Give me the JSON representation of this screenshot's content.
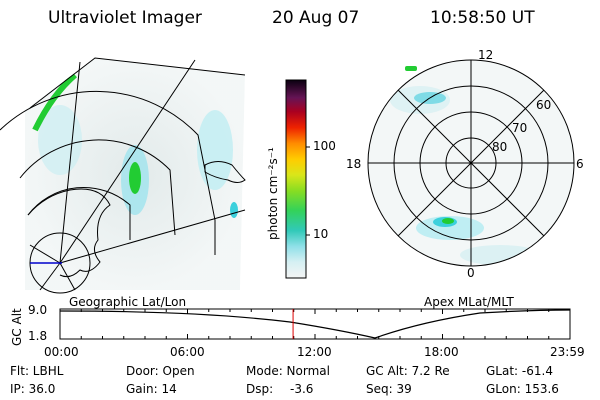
{
  "header": {
    "instrument": "Ultraviolet Imager",
    "date": "20 Aug 07",
    "time": "10:58:50 UT"
  },
  "colorbar": {
    "unit_label": "photon cm⁻²s⁻¹",
    "ticks": [
      "100",
      "10"
    ]
  },
  "polar_plot": {
    "mlt_labels": {
      "top": "12",
      "left": "18",
      "right": "6",
      "bottom": "0"
    },
    "lat_labels": [
      "60",
      "70",
      "80"
    ]
  },
  "altitude_strip": {
    "left_title": "Geographic Lat/Lon",
    "right_title": "Apex MLat/MLT",
    "axis_label": "GC Alt",
    "y_ticks": [
      "9.0",
      "1.8"
    ],
    "time_ticks": [
      "00:00",
      "06:00",
      "12:00",
      "18:00",
      "23:59"
    ],
    "current_time_fraction": 0.457
  },
  "status": {
    "flt": "Flt: LBHL",
    "ip": "IP: 36.0",
    "door": "Door: Open",
    "gain": "Gain: 14",
    "mode": "Mode: Normal",
    "dsp_label": "Dsp:",
    "dsp_value": "-3.6",
    "gc_alt": "GC Alt: 7.2 Re",
    "seq": "Seq: 39",
    "glat": "GLat: -61.4",
    "glon": "GLon: 153.6"
  },
  "colors": {
    "aurora_low": "#9fe3ee",
    "aurora_mid": "#3cd0dc",
    "aurora_high": "#22cc33",
    "time_marker": "#dd0000"
  }
}
